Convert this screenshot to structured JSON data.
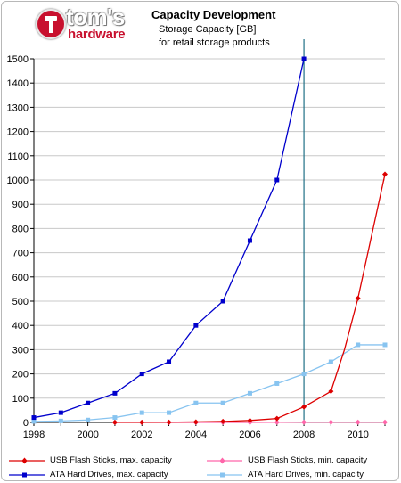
{
  "header": {
    "logo_word1": "tom's",
    "logo_word2": "hardware",
    "title": "Capacity Development",
    "subtitle1": "Storage Capacity [GB]",
    "subtitle2": "for retail storage products"
  },
  "chart_data": {
    "type": "line",
    "title": "Capacity Development",
    "subtitle": "Storage Capacity [GB] for retail storage products",
    "xlabel": "",
    "ylabel": "",
    "xlim": [
      1998,
      2011
    ],
    "ylim": [
      0,
      1500
    ],
    "x_ticks": [
      "1998",
      "2000",
      "2002",
      "2004",
      "2006",
      "2008",
      "2010"
    ],
    "y_ticks": [
      "0",
      "100",
      "200",
      "300",
      "400",
      "500",
      "600",
      "700",
      "800",
      "900",
      "1000",
      "1100",
      "1200",
      "1300",
      "1400",
      "1500"
    ],
    "grid": "horizontal",
    "reference_line_x": 2008,
    "legend_position": "bottom",
    "series": [
      {
        "name": "USB Flash Sticks, max. capacity",
        "color": "#dd0000",
        "marker": "diamond",
        "x": [
          2001,
          2002,
          2003,
          2004,
          2005,
          2006,
          2007,
          2008,
          2008.5,
          2009,
          2009.5,
          2010,
          2010.5,
          2011
        ],
        "y": [
          0.5,
          0.5,
          1,
          2,
          4,
          8,
          16,
          64,
          96,
          128,
          300,
          512,
          768,
          1024
        ]
      },
      {
        "name": "USB Flash Sticks, min. capacity",
        "color": "#ff66aa",
        "marker": "diamond",
        "x": [
          2001,
          2002,
          2003,
          2004,
          2005,
          2006,
          2007,
          2008,
          2009,
          2010,
          2011
        ],
        "y": [
          0.03,
          0.06,
          0.06,
          0.1,
          0.1,
          0.1,
          0.5,
          1,
          1,
          1,
          1
        ]
      },
      {
        "name": "ATA Hard Drives, max. capacity",
        "color": "#0000cc",
        "marker": "square",
        "x": [
          1998,
          1999,
          2000,
          2001,
          2002,
          2003,
          2004,
          2005,
          2006,
          2007,
          2008
        ],
        "y": [
          20,
          40,
          80,
          120,
          200,
          250,
          400,
          500,
          750,
          1000,
          1500
        ]
      },
      {
        "name": "ATA Hard Drives, min. capacity",
        "color": "#88c4f0",
        "marker": "square",
        "x": [
          1998,
          1999,
          2000,
          2001,
          2002,
          2003,
          2004,
          2005,
          2006,
          2007,
          2008,
          2009,
          2010,
          2011
        ],
        "y": [
          4,
          6,
          10,
          20,
          40,
          40,
          80,
          80,
          120,
          160,
          200,
          250,
          320,
          320
        ]
      }
    ]
  }
}
